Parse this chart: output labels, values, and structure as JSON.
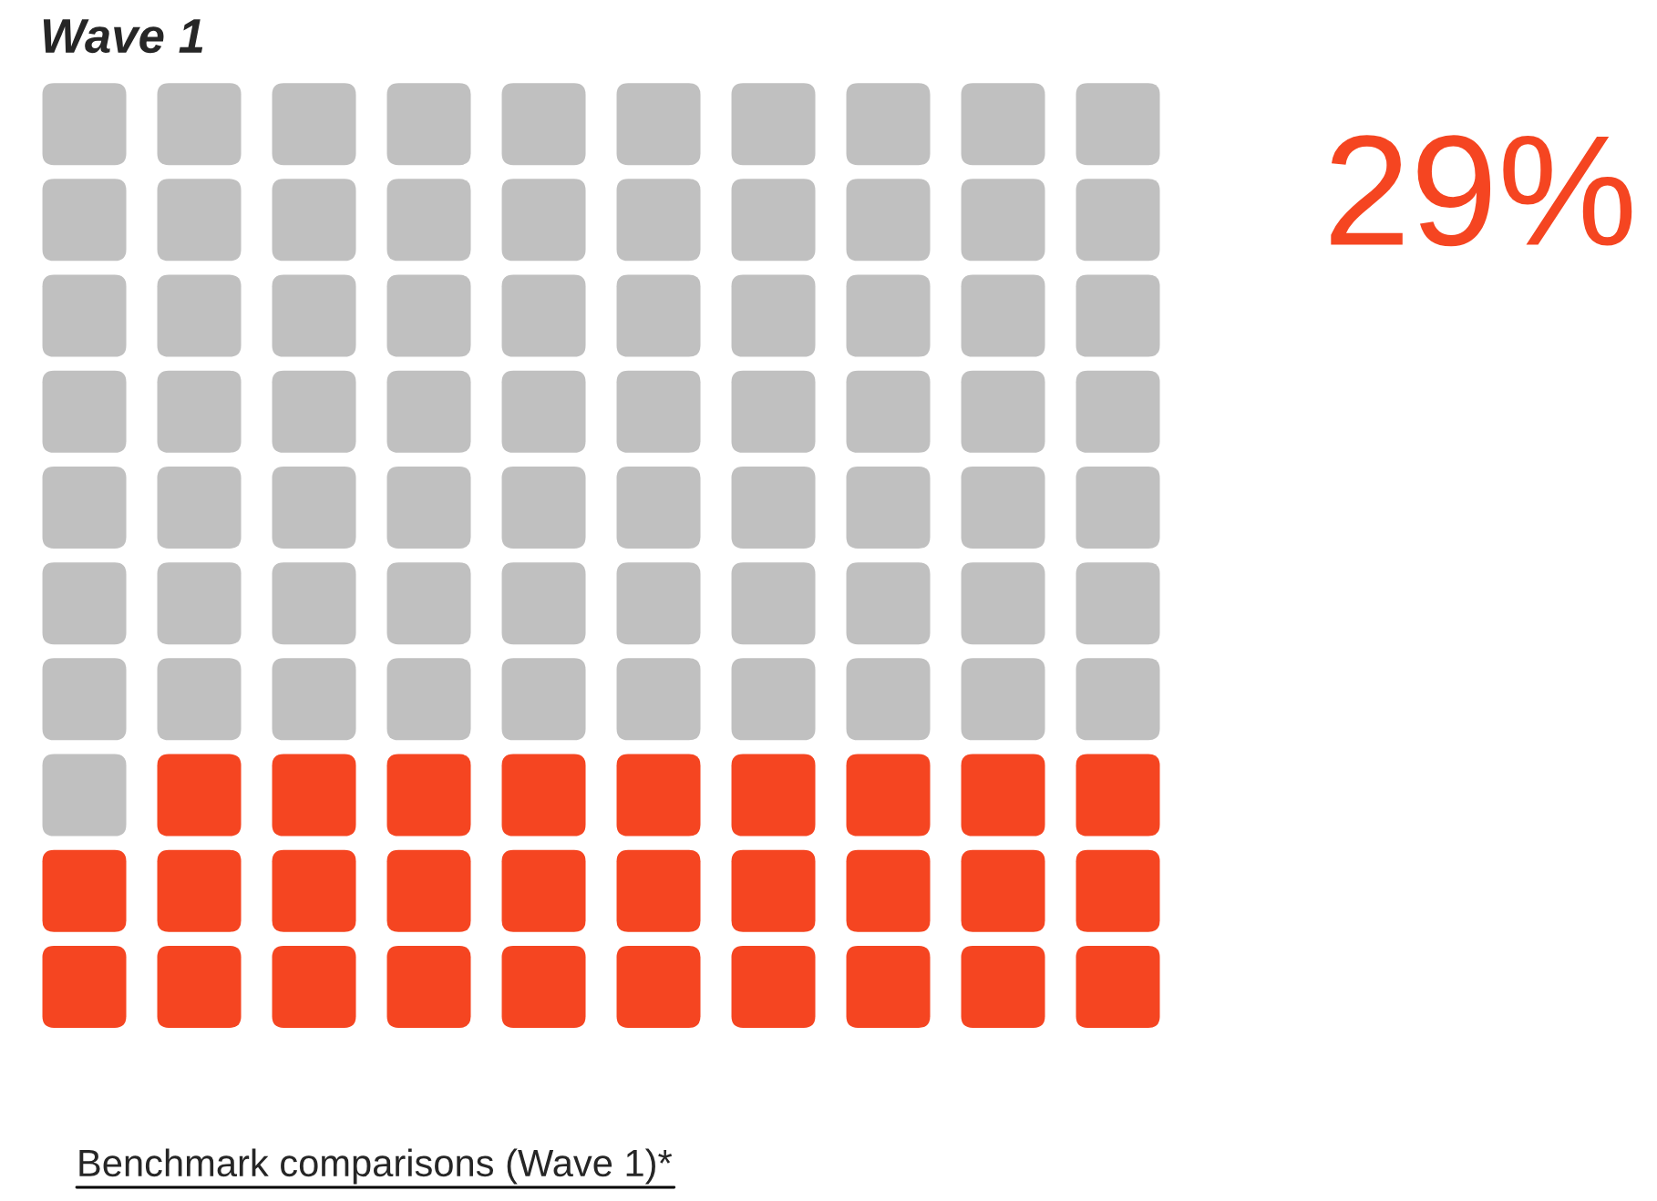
{
  "chart_data": {
    "type": "other",
    "title": "Wave 1",
    "values": [
      29
    ],
    "value_labels": [
      "29%"
    ],
    "color": "#f54521",
    "annotations": [
      "Benchmark comparisons (Wave 1)*"
    ]
  }
}
